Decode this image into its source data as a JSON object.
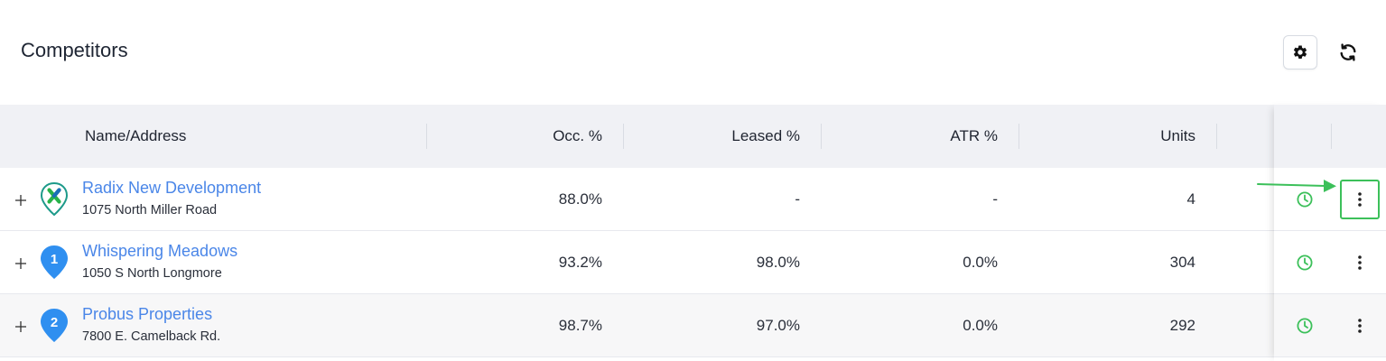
{
  "header": {
    "title": "Competitors"
  },
  "icons": {
    "settings": "gear-icon",
    "refresh": "refresh-icon",
    "expand": "plus-icon",
    "history": "clock-icon",
    "more": "vertical-ellipsis-icon",
    "logo": "radix-logo-pin"
  },
  "table": {
    "columns": {
      "name": "Name/Address",
      "occ": "Occ. %",
      "leased": "Leased %",
      "atr": "ATR %",
      "units": "Units"
    },
    "rows": [
      {
        "marker": "",
        "name": "Radix New Development",
        "address": "1075 North Miller Road",
        "occ": "88.0%",
        "leased": "-",
        "atr": "-",
        "units": "4"
      },
      {
        "marker": "1",
        "name": "Whispering Meadows",
        "address": "1050 S North Longmore",
        "occ": "93.2%",
        "leased": "98.0%",
        "atr": "0.0%",
        "units": "304"
      },
      {
        "marker": "2",
        "name": "Probus Properties",
        "address": "7800 E. Camelback Rd.",
        "occ": "98.7%",
        "leased": "97.0%",
        "atr": "0.0%",
        "units": "292"
      }
    ]
  },
  "colors": {
    "link": "#4a86e8",
    "pin_blue": "#2f8ff0",
    "accent_green": "#3cc05a",
    "header_bg": "#f0f1f5"
  }
}
